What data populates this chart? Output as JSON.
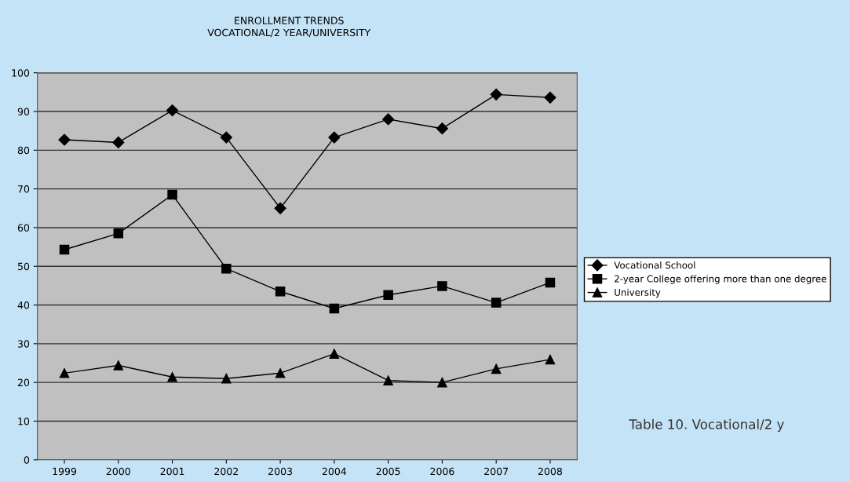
{
  "chart_data": {
    "type": "line",
    "title": "ENROLLMENT TRENDS",
    "subtitle": "VOCATIONAL/2 YEAR/UNIVERSITY",
    "categories": [
      "1999",
      "2000",
      "2001",
      "2002",
      "2003",
      "2004",
      "2005",
      "2006",
      "2007",
      "2008"
    ],
    "series": [
      {
        "name": "Vocational School",
        "color": "#000000",
        "marker": "diamond",
        "values": [
          82.7,
          82,
          90.3,
          83.3,
          65,
          83.3,
          88,
          85.6,
          94.4,
          93.6
        ]
      },
      {
        "name": "2-year College offering more than one degree",
        "color": "#000000",
        "marker": "square",
        "values": [
          54.3,
          58.5,
          68.5,
          49.4,
          43.5,
          39.1,
          42.6,
          44.9,
          40.6,
          45.8
        ]
      },
      {
        "name": "University",
        "color": "#000000",
        "marker": "triangle",
        "values": [
          22.4,
          24.4,
          21.4,
          21,
          22.4,
          27.4,
          20.5,
          20,
          23.5,
          25.9
        ]
      }
    ],
    "ylim": [
      0,
      100
    ],
    "yticks": [
      0,
      10,
      20,
      30,
      40,
      50,
      60,
      70,
      80,
      90,
      100
    ],
    "grid": "y",
    "legend": "right",
    "line_style": "solid",
    "annotations": [
      "Table 10. Vocational/2 y"
    ]
  }
}
